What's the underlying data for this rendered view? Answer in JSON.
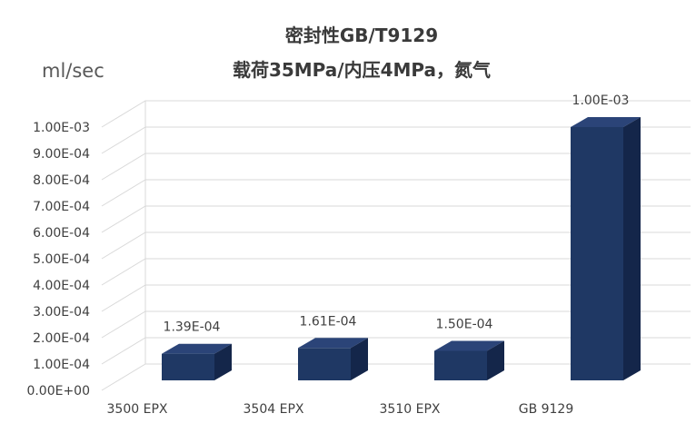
{
  "chart_data": {
    "type": "bar",
    "title": "密封性GB/T9129",
    "subtitle": "载荷35MPa/内压4MPa，氮气",
    "ylabel": "ml/sec",
    "xlabel": "",
    "categories": [
      "3500 EPX",
      "3504 EPX",
      "3510 EPX",
      "GB 9129"
    ],
    "values": [
      0.000139,
      0.000161,
      0.00015,
      0.001
    ],
    "data_labels": [
      "1.39E-04",
      "1.61E-04",
      "1.50E-04",
      "1.00E-03"
    ],
    "ylim": [
      0,
      0.001
    ],
    "yticks": [
      0,
      0.0001,
      0.0002,
      0.0003,
      0.0004,
      0.0005,
      0.0006,
      0.0007,
      0.0008,
      0.0009,
      0.001
    ],
    "ytick_labels": [
      "0.00E+00",
      "1.00E-04",
      "2.00E-04",
      "3.00E-04",
      "4.00E-04",
      "5.00E-04",
      "6.00E-04",
      "7.00E-04",
      "8.00E-04",
      "9.00E-04",
      "1.00E-03"
    ],
    "grid": true,
    "legend": "none",
    "style": "3d-column",
    "colors": {
      "bar_front": "#1f3864",
      "bar_top": "#2b4478",
      "bar_side": "#14264a",
      "grid": "#d9d9d9"
    }
  }
}
